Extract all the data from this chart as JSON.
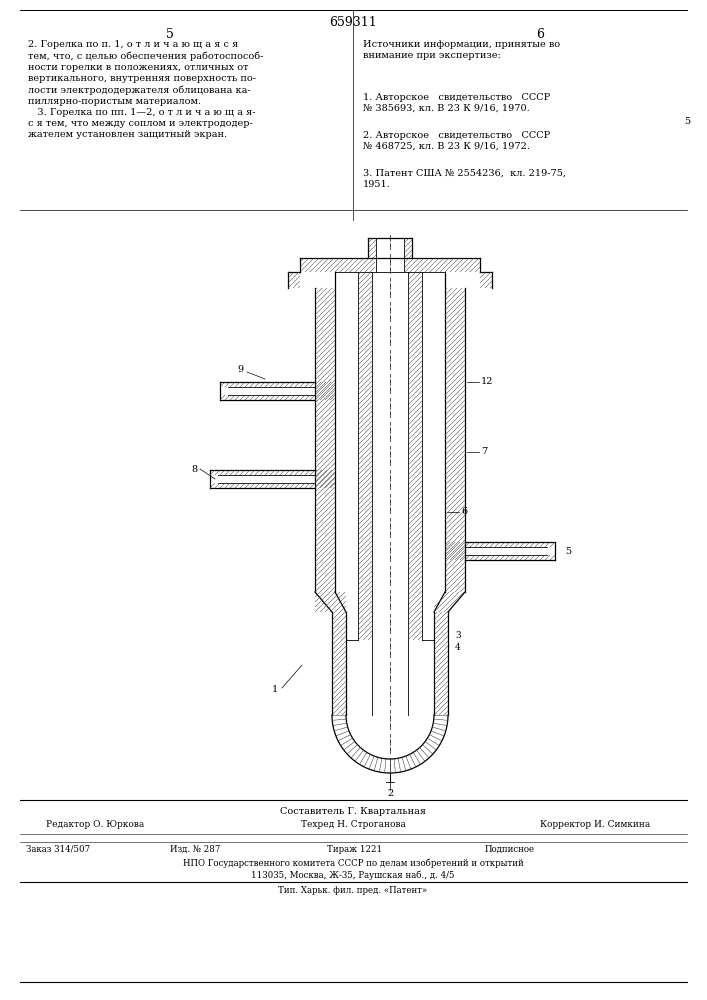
{
  "page_number_center": "659311",
  "page_left": "5",
  "page_right": "6",
  "left_text": "2. Горелка по п. 1, о т л и ч а ю щ а я с я\nтем, что, с целью обеспечения работоспособ-\nности горелки в положениях, отличных от\nвертикального, внутренняя поверхность по-\nлости электрододержателя облицована ка-\nпиллярно-пористым материалом.\n   3. Горелка по пп. 1—2, о т л и ч а ю щ а я-\nс я тем, что между соплом и электрододер-\nжателем установлен защитный экран.",
  "right_text_title": "Источники информации, принятые во\nвнимание при экспертизе:",
  "right_refs": [
    "1. Авторское   свидетельство   СССР\n№ 385693, кл. В 23 К 9/16, 1970.",
    "2. Авторское   свидетельство   СССР\n№ 468725, кл. В 23 К 9/16, 1972.",
    "3. Патент США № 2554236,  кл. 219-75,\n1951."
  ],
  "right_line_5": "5",
  "footer_composer": "Составитель Г. Квартальная",
  "footer_editor": "Редактор О. Юркова",
  "footer_techred": "Техред Н. Строганова",
  "footer_corrector": "Корректор И. Симкина",
  "footer_order": "Заказ 314/507",
  "footer_izd": "Изд. № 287",
  "footer_tirazh": "Тираж 1221",
  "footer_podpisnoe": "Подписное",
  "footer_npo": "НПО Государственного комитета СССР по делам изобретений и открытий",
  "footer_address": "113035, Москва, Ж-35, Раушская наб., д. 4/5",
  "footer_tip": "Тип. Харьк. фил. пред. «Патент»",
  "bg_color": "#ffffff",
  "text_color": "#000000"
}
